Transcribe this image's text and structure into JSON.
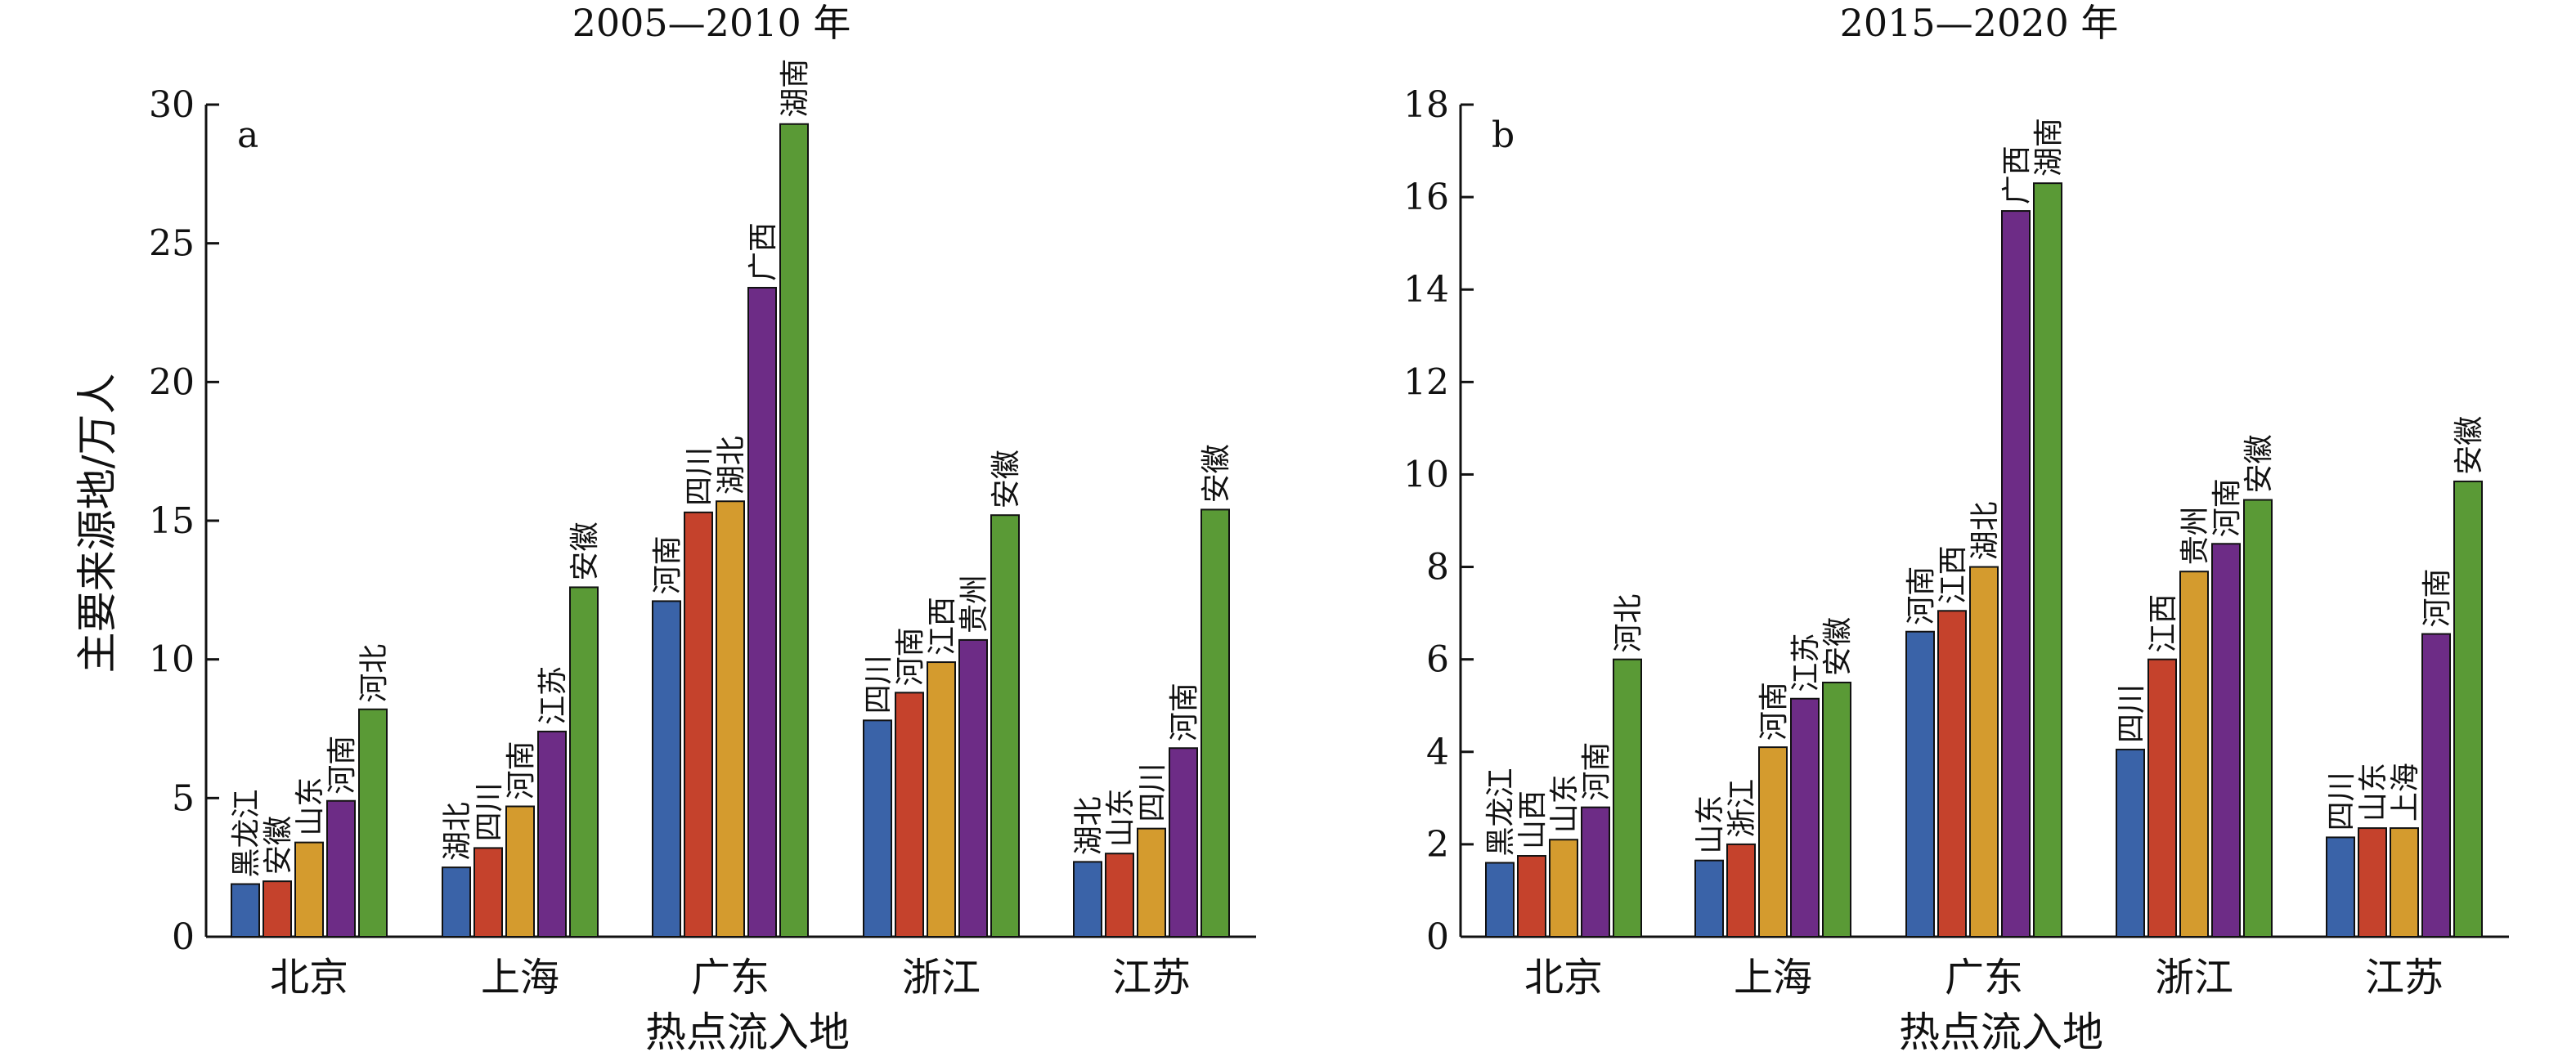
{
  "chart_data": [
    {
      "type": "bar",
      "title": "2005—2010 年",
      "panel": "a",
      "ylabel": "主要来源地/万人",
      "xlabel": "热点流入地",
      "ylim": [
        0,
        30
      ],
      "yticks": [
        0,
        5,
        10,
        15,
        20,
        25,
        30
      ],
      "categories": [
        "北京",
        "上海",
        "广东",
        "浙江",
        "江苏"
      ],
      "groups": [
        {
          "category": "北京",
          "bars": [
            {
              "label": "黑龙江",
              "value": 1.9
            },
            {
              "label": "安徽",
              "value": 2.0
            },
            {
              "label": "山东",
              "value": 3.4
            },
            {
              "label": "河南",
              "value": 4.9
            },
            {
              "label": "河北",
              "value": 8.2
            }
          ]
        },
        {
          "category": "上海",
          "bars": [
            {
              "label": "湖北",
              "value": 2.5
            },
            {
              "label": "四川",
              "value": 3.2
            },
            {
              "label": "河南",
              "value": 4.7
            },
            {
              "label": "江苏",
              "value": 7.4
            },
            {
              "label": "安徽",
              "value": 12.6
            }
          ]
        },
        {
          "category": "广东",
          "bars": [
            {
              "label": "河南",
              "value": 12.1
            },
            {
              "label": "四川",
              "value": 15.3
            },
            {
              "label": "湖北",
              "value": 15.7
            },
            {
              "label": "广西",
              "value": 23.4
            },
            {
              "label": "湖南",
              "value": 29.3
            }
          ]
        },
        {
          "category": "浙江",
          "bars": [
            {
              "label": "四川",
              "value": 7.8
            },
            {
              "label": "河南",
              "value": 8.8
            },
            {
              "label": "江西",
              "value": 9.9
            },
            {
              "label": "贵州",
              "value": 10.7
            },
            {
              "label": "安徽",
              "value": 15.2
            }
          ]
        },
        {
          "category": "江苏",
          "bars": [
            {
              "label": "湖北",
              "value": 2.7
            },
            {
              "label": "山东",
              "value": 3.0
            },
            {
              "label": "四川",
              "value": 3.9
            },
            {
              "label": "河南",
              "value": 6.8
            },
            {
              "label": "安徽",
              "value": 15.4
            }
          ]
        }
      ]
    },
    {
      "type": "bar",
      "title": "2015—2020 年",
      "panel": "b",
      "xlabel": "热点流入地",
      "ylim": [
        0,
        18
      ],
      "yticks": [
        0,
        2,
        4,
        6,
        8,
        10,
        12,
        14,
        16,
        18
      ],
      "categories": [
        "北京",
        "上海",
        "广东",
        "浙江",
        "江苏"
      ],
      "groups": [
        {
          "category": "北京",
          "bars": [
            {
              "label": "黑龙江",
              "value": 1.6
            },
            {
              "label": "山西",
              "value": 1.75
            },
            {
              "label": "山东",
              "value": 2.1
            },
            {
              "label": "河南",
              "value": 2.8
            },
            {
              "label": "河北",
              "value": 6.0
            }
          ]
        },
        {
          "category": "上海",
          "bars": [
            {
              "label": "山东",
              "value": 1.65
            },
            {
              "label": "浙江",
              "value": 2.0
            },
            {
              "label": "河南",
              "value": 4.1
            },
            {
              "label": "江苏",
              "value": 5.15
            },
            {
              "label": "安徽",
              "value": 5.5
            }
          ]
        },
        {
          "category": "广东",
          "bars": [
            {
              "label": "河南",
              "value": 6.6
            },
            {
              "label": "江西",
              "value": 7.05
            },
            {
              "label": "湖北",
              "value": 8.0
            },
            {
              "label": "广西",
              "value": 15.7
            },
            {
              "label": "湖南",
              "value": 16.3
            }
          ]
        },
        {
          "category": "浙江",
          "bars": [
            {
              "label": "四川",
              "value": 4.05
            },
            {
              "label": "江西",
              "value": 6.0
            },
            {
              "label": "贵州",
              "value": 7.9
            },
            {
              "label": "河南",
              "value": 8.5
            },
            {
              "label": "安徽",
              "value": 9.45
            }
          ]
        },
        {
          "category": "江苏",
          "bars": [
            {
              "label": "四川",
              "value": 2.15
            },
            {
              "label": "山东",
              "value": 2.35
            },
            {
              "label": "上海",
              "value": 2.35
            },
            {
              "label": "河南",
              "value": 6.55
            },
            {
              "label": "安徽",
              "value": 9.85
            }
          ]
        }
      ]
    }
  ],
  "bar_colors": [
    "#3a63a8",
    "#c5422c",
    "#d49b2e",
    "#6d2c86",
    "#5a9a36"
  ]
}
